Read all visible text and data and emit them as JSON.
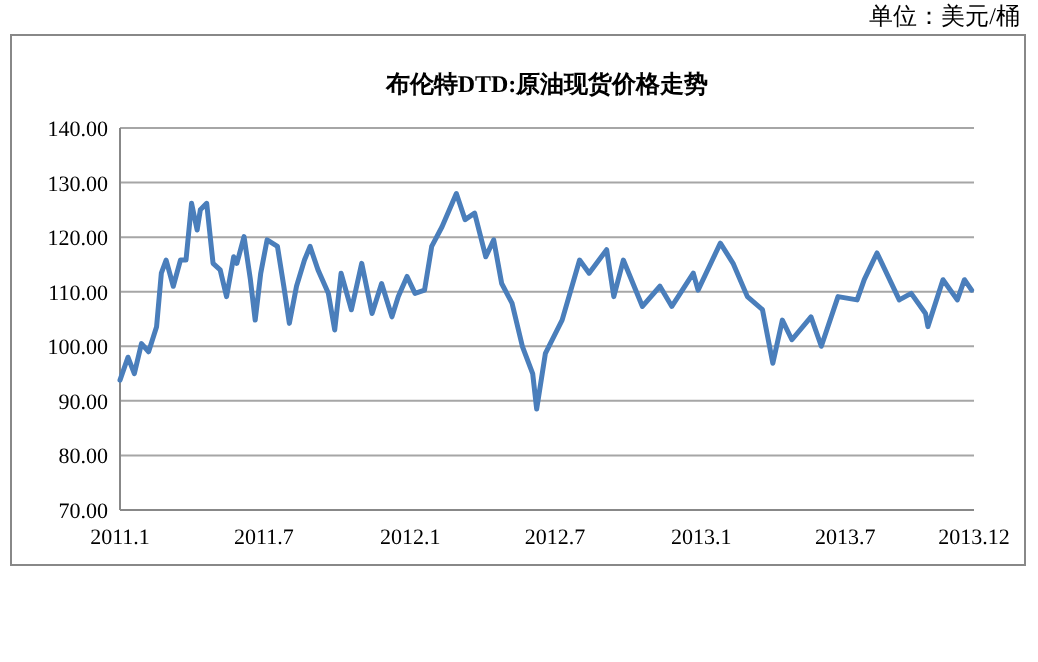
{
  "chart_data": {
    "type": "line",
    "title": "布伦特DTD:原油现货价格走势",
    "annotations": [
      "单位：美元/桶"
    ],
    "x": [
      "2011-01-01",
      "2011-01-11",
      "2011-01-19",
      "2011-01-28",
      "2011-02-06",
      "2011-02-16",
      "2011-02-22",
      "2011-02-28",
      "2011-03-09",
      "2011-03-18",
      "2011-03-25",
      "2011-04-01",
      "2011-04-08",
      "2011-04-12",
      "2011-04-20",
      "2011-04-28",
      "2011-05-07",
      "2011-05-15",
      "2011-05-24",
      "2011-05-28",
      "2011-06-06",
      "2011-06-14",
      "2011-06-20",
      "2011-06-27",
      "2011-07-05",
      "2011-07-18",
      "2011-07-26",
      "2011-08-02",
      "2011-08-11",
      "2011-08-21",
      "2011-08-28",
      "2011-09-07",
      "2011-09-20",
      "2011-09-28",
      "2011-10-06",
      "2011-10-19",
      "2011-11-01",
      "2011-11-14",
      "2011-11-26",
      "2011-12-09",
      "2011-12-17",
      "2011-12-28",
      "2012-01-07",
      "2012-01-19",
      "2012-01-28",
      "2012-02-10",
      "2012-02-28",
      "2012-03-10",
      "2012-03-22",
      "2012-04-05",
      "2012-04-15",
      "2012-04-25",
      "2012-05-08",
      "2012-05-21",
      "2012-06-03",
      "2012-06-08",
      "2012-06-19",
      "2012-07-10",
      "2012-08-01",
      "2012-08-13",
      "2012-09-04",
      "2012-09-13",
      "2012-09-25",
      "2012-10-19",
      "2012-11-10",
      "2012-11-25",
      "2012-12-22",
      "2012-12-28",
      "2013-01-25",
      "2013-02-10",
      "2013-02-28",
      "2013-03-19",
      "2013-04-01",
      "2013-04-13",
      "2013-04-25",
      "2013-05-19",
      "2013-06-01",
      "2013-06-22",
      "2013-07-16",
      "2013-07-25",
      "2013-08-10",
      "2013-09-07",
      "2013-09-22",
      "2013-10-10",
      "2013-10-13",
      "2013-11-01",
      "2013-11-19",
      "2013-11-28",
      "2013-12-07"
    ],
    "series": [
      {
        "color": "#4a7ebb",
        "values": [
          93.8,
          98,
          95,
          100.5,
          99,
          103.6,
          113.4,
          115.8,
          111,
          115.8,
          115.8,
          126.2,
          121.3,
          125,
          126.2,
          115.2,
          114,
          109.1,
          116.4,
          115.2,
          120.1,
          112.2,
          104.8,
          113.4,
          119.5,
          118.3,
          111,
          104.2,
          111,
          115.8,
          118.3,
          114,
          109.7,
          103,
          113.4,
          106.7,
          115.2,
          106,
          111.5,
          105.4,
          109.1,
          112.8,
          109.7,
          110.3,
          118.3,
          121.9,
          128,
          123.2,
          124.4,
          116.4,
          119.5,
          111.5,
          107.9,
          100,
          95,
          88.5,
          98.7,
          104.8,
          115.8,
          113.4,
          117.7,
          109.1,
          115.8,
          107.3,
          111,
          107.3,
          113.4,
          110.3,
          118.9,
          115.2,
          109.1,
          106.7,
          96.9,
          104.8,
          101.2,
          105.4,
          100,
          109.1,
          108.5,
          112.2,
          117.1,
          108.5,
          109.7,
          106,
          103.6,
          112.2,
          108.5,
          112.2,
          110.3
        ]
      }
    ],
    "xlim": [
      "2011-01-01",
      "2013-12-10"
    ],
    "xticks": [
      {
        "value": "2011-01-01",
        "label": "2011.1"
      },
      {
        "value": "2011-07-01",
        "label": "2011.7"
      },
      {
        "value": "2012-01-01",
        "label": "2012.1"
      },
      {
        "value": "2012-07-01",
        "label": "2012.7"
      },
      {
        "value": "2013-01-01",
        "label": "2013.1"
      },
      {
        "value": "2013-07-01",
        "label": "2013.7"
      },
      {
        "value": "2013-12-10",
        "label": "2013.12"
      }
    ],
    "ylim": [
      70,
      140
    ],
    "yticks": [
      {
        "value": 70,
        "label": "70.00"
      },
      {
        "value": 80,
        "label": "80.00"
      },
      {
        "value": 90,
        "label": "90.00"
      },
      {
        "value": 100,
        "label": "100.00"
      },
      {
        "value": 110,
        "label": "110.00"
      },
      {
        "value": 120,
        "label": "120.00"
      },
      {
        "value": 130,
        "label": "130.00"
      },
      {
        "value": 140,
        "label": "140.00"
      }
    ],
    "grid": "y",
    "line_style": "solid"
  }
}
